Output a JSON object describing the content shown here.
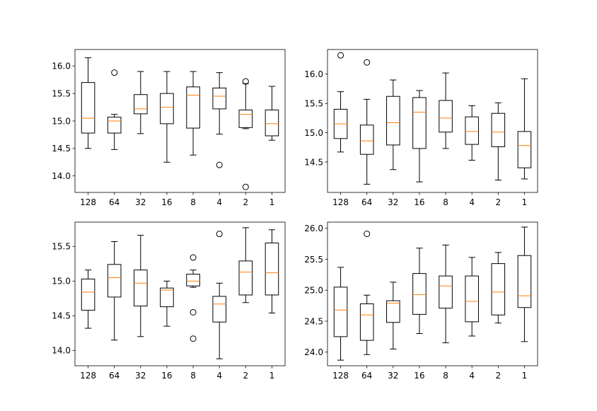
{
  "colors": {
    "median": "#ff7f0e",
    "box": "#000000",
    "background": "#ffffff"
  },
  "chart_data": [
    {
      "type": "boxplot",
      "position": "top-left",
      "categories": [
        "128",
        "64",
        "32",
        "16",
        "8",
        "4",
        "2",
        "1"
      ],
      "ylim": [
        13.7,
        16.3
      ],
      "yticks": [
        14.0,
        14.5,
        15.0,
        15.5,
        16.0
      ],
      "ytick_labels": [
        "14.0",
        "14.5",
        "15.0",
        "15.5",
        "16.0"
      ],
      "boxes": [
        {
          "whislo": 14.5,
          "q1": 14.78,
          "med": 15.05,
          "q3": 15.7,
          "whishi": 16.15,
          "fliers": []
        },
        {
          "whislo": 14.48,
          "q1": 14.78,
          "med": 15.0,
          "q3": 15.07,
          "whishi": 15.12,
          "fliers": [
            15.88
          ]
        },
        {
          "whislo": 14.77,
          "q1": 15.13,
          "med": 15.22,
          "q3": 15.48,
          "whishi": 15.9,
          "fliers": []
        },
        {
          "whislo": 14.25,
          "q1": 14.95,
          "med": 15.25,
          "q3": 15.5,
          "whishi": 15.9,
          "fliers": []
        },
        {
          "whislo": 14.38,
          "q1": 14.87,
          "med": 15.47,
          "q3": 15.62,
          "whishi": 15.9,
          "fliers": []
        },
        {
          "whislo": 14.76,
          "q1": 15.22,
          "med": 15.45,
          "q3": 15.6,
          "whishi": 15.88,
          "fliers": [
            14.2
          ]
        },
        {
          "whislo": 14.86,
          "q1": 14.88,
          "med": 15.12,
          "q3": 15.2,
          "whishi": 15.68,
          "fliers": [
            15.72,
            13.8
          ]
        },
        {
          "whislo": 14.65,
          "q1": 14.73,
          "med": 14.95,
          "q3": 15.2,
          "whishi": 15.63,
          "fliers": []
        }
      ]
    },
    {
      "type": "boxplot",
      "position": "top-right",
      "categories": [
        "128",
        "64",
        "32",
        "16",
        "8",
        "4",
        "2",
        "1"
      ],
      "ylim": [
        13.98,
        16.42
      ],
      "yticks": [
        14.5,
        15.0,
        15.5,
        16.0
      ],
      "ytick_labels": [
        "14.5",
        "15.0",
        "15.5",
        "16.0"
      ],
      "boxes": [
        {
          "whislo": 14.67,
          "q1": 14.9,
          "med": 15.15,
          "q3": 15.4,
          "whishi": 15.7,
          "fliers": [
            16.32
          ]
        },
        {
          "whislo": 14.12,
          "q1": 14.63,
          "med": 14.86,
          "q3": 15.13,
          "whishi": 15.57,
          "fliers": [
            16.2
          ]
        },
        {
          "whislo": 14.37,
          "q1": 14.79,
          "med": 15.17,
          "q3": 15.62,
          "whishi": 15.9,
          "fliers": []
        },
        {
          "whislo": 14.16,
          "q1": 14.73,
          "med": 15.35,
          "q3": 15.6,
          "whishi": 15.72,
          "fliers": []
        },
        {
          "whislo": 14.73,
          "q1": 15.01,
          "med": 15.25,
          "q3": 15.55,
          "whishi": 16.02,
          "fliers": []
        },
        {
          "whislo": 14.53,
          "q1": 14.8,
          "med": 15.02,
          "q3": 15.27,
          "whishi": 15.46,
          "fliers": []
        },
        {
          "whislo": 14.19,
          "q1": 14.76,
          "med": 15.01,
          "q3": 15.33,
          "whishi": 15.51,
          "fliers": []
        },
        {
          "whislo": 14.21,
          "q1": 14.4,
          "med": 14.78,
          "q3": 15.02,
          "whishi": 15.92,
          "fliers": []
        }
      ]
    },
    {
      "type": "boxplot",
      "position": "bottom-left",
      "categories": [
        "128",
        "64",
        "32",
        "16",
        "8",
        "4",
        "2",
        "1"
      ],
      "ylim": [
        13.78,
        15.85
      ],
      "yticks": [
        14.0,
        14.5,
        15.0,
        15.5
      ],
      "ytick_labels": [
        "14.0",
        "14.5",
        "15.0",
        "15.5"
      ],
      "boxes": [
        {
          "whislo": 14.32,
          "q1": 14.58,
          "med": 14.84,
          "q3": 15.03,
          "whishi": 15.16,
          "fliers": []
        },
        {
          "whislo": 14.15,
          "q1": 14.77,
          "med": 15.05,
          "q3": 15.24,
          "whishi": 15.57,
          "fliers": []
        },
        {
          "whislo": 14.2,
          "q1": 14.64,
          "med": 14.97,
          "q3": 15.16,
          "whishi": 15.66,
          "fliers": []
        },
        {
          "whislo": 14.35,
          "q1": 14.63,
          "med": 14.87,
          "q3": 14.9,
          "whishi": 15.0,
          "fliers": []
        },
        {
          "whislo": 14.91,
          "q1": 14.93,
          "med": 15.0,
          "q3": 15.1,
          "whishi": 15.16,
          "fliers": [
            15.34,
            14.55,
            14.17
          ]
        },
        {
          "whislo": 13.88,
          "q1": 14.41,
          "med": 14.67,
          "q3": 14.78,
          "whishi": 14.97,
          "fliers": [
            15.68
          ]
        },
        {
          "whislo": 14.69,
          "q1": 14.8,
          "med": 15.13,
          "q3": 15.29,
          "whishi": 15.77,
          "fliers": []
        },
        {
          "whislo": 14.54,
          "q1": 14.8,
          "med": 15.12,
          "q3": 15.55,
          "whishi": 15.74,
          "fliers": []
        }
      ]
    },
    {
      "type": "boxplot",
      "position": "bottom-right",
      "categories": [
        "128",
        "64",
        "32",
        "16",
        "8",
        "4",
        "2",
        "1"
      ],
      "ylim": [
        23.78,
        26.1
      ],
      "yticks": [
        24.0,
        24.5,
        25.0,
        25.5,
        26.0
      ],
      "ytick_labels": [
        "24.0",
        "24.5",
        "25.0",
        "25.5",
        "26.0"
      ],
      "boxes": [
        {
          "whislo": 23.87,
          "q1": 24.25,
          "med": 24.68,
          "q3": 25.05,
          "whishi": 25.37,
          "fliers": []
        },
        {
          "whislo": 23.96,
          "q1": 24.19,
          "med": 24.6,
          "q3": 24.78,
          "whishi": 24.92,
          "fliers": [
            25.91
          ]
        },
        {
          "whislo": 24.05,
          "q1": 24.48,
          "med": 24.79,
          "q3": 24.83,
          "whishi": 25.13,
          "fliers": []
        },
        {
          "whislo": 24.3,
          "q1": 24.61,
          "med": 24.93,
          "q3": 25.27,
          "whishi": 25.68,
          "fliers": []
        },
        {
          "whislo": 24.15,
          "q1": 24.71,
          "med": 25.07,
          "q3": 25.23,
          "whishi": 25.73,
          "fliers": []
        },
        {
          "whislo": 24.26,
          "q1": 24.49,
          "med": 24.82,
          "q3": 25.23,
          "whishi": 25.53,
          "fliers": []
        },
        {
          "whislo": 24.47,
          "q1": 24.6,
          "med": 24.97,
          "q3": 25.43,
          "whishi": 25.61,
          "fliers": []
        },
        {
          "whislo": 24.17,
          "q1": 24.72,
          "med": 24.91,
          "q3": 25.56,
          "whishi": 26.02,
          "fliers": []
        }
      ]
    }
  ]
}
